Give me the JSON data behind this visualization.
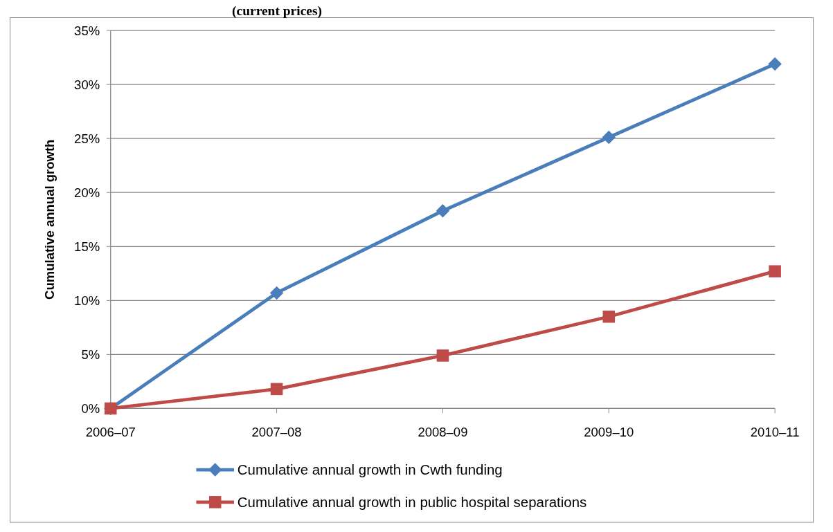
{
  "chart_data": {
    "type": "line",
    "title": "(current prices)",
    "ylabel": "Cumulative annual growth",
    "categories": [
      "2006–07",
      "2007–08",
      "2008–09",
      "2009–10",
      "2010–11"
    ],
    "series": [
      {
        "name": "Cumulative annual growth in Cwth funding",
        "color": "#4a7ebb",
        "marker": "diamond",
        "values": [
          0,
          10.7,
          18.3,
          25.1,
          31.9
        ]
      },
      {
        "name": "Cumulative annual growth in public hospital separations",
        "color": "#be4b48",
        "marker": "square",
        "values": [
          0,
          1.8,
          4.9,
          8.5,
          12.7
        ]
      }
    ],
    "ylim": [
      0,
      35
    ],
    "yticks": [
      {
        "value": 0,
        "label": "0%"
      },
      {
        "value": 5,
        "label": "5%"
      },
      {
        "value": 10,
        "label": "10%"
      },
      {
        "value": 15,
        "label": "15%"
      },
      {
        "value": 20,
        "label": "20%"
      },
      {
        "value": 25,
        "label": "25%"
      },
      {
        "value": 30,
        "label": "30%"
      },
      {
        "value": 35,
        "label": "35%"
      }
    ],
    "grid": "y",
    "legend": "bottom"
  }
}
